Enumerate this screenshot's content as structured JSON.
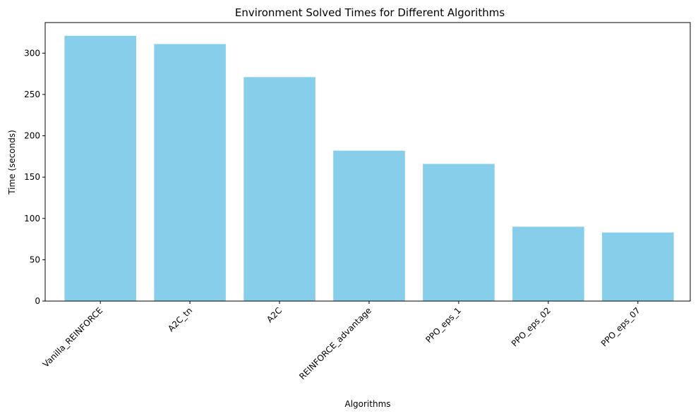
{
  "chart_data": {
    "type": "bar",
    "title": "Environment Solved Times for Different Algorithms",
    "xlabel": "Algorithms",
    "ylabel": "Time (seconds)",
    "categories": [
      "Vanilla_REINFORCE",
      "A2C_tn",
      "A2C",
      "REINFORCE_advantage",
      "PPO_eps_1",
      "PPO_eps_02",
      "PPO_eps_07"
    ],
    "values": [
      321,
      311,
      271,
      182,
      166,
      90,
      83
    ],
    "ylim": [
      0,
      337
    ],
    "yticks": [
      0,
      50,
      100,
      150,
      200,
      250,
      300
    ],
    "bar_color": "#87ceeb",
    "grid": false
  }
}
